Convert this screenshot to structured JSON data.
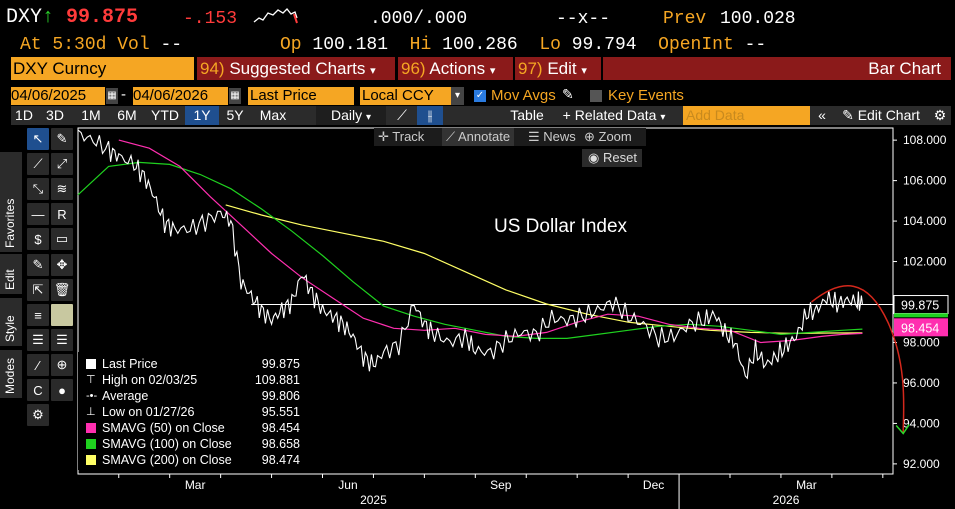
{
  "header": {
    "ticker": "DXY",
    "arrow": "↑",
    "last": "99.875",
    "change": "-.153",
    "bidask": ".000/.000",
    "size": "--x--",
    "prev_label": "Prev",
    "prev_value": "100.028",
    "at_label": "At",
    "time": "5:30d",
    "vol_label": "Vol",
    "vol_value": "--",
    "op_label": "Op",
    "op_value": "100.181",
    "hi_label": "Hi",
    "hi_value": "100.286",
    "lo_label": "Lo",
    "lo_value": "99.794",
    "openint_label": "OpenInt",
    "openint_value": "--"
  },
  "menu": {
    "security": "DXY Curncy",
    "suggested_num": "94)",
    "suggested": "Suggested Charts",
    "actions_num": "96)",
    "actions": "Actions",
    "edit_num": "97)",
    "edit": "Edit",
    "chart_type": "Bar Chart"
  },
  "controls": {
    "start_date": "04/06/2025",
    "end_date": "04/06/2026",
    "field": "Last Price",
    "currency": "Local CCY",
    "mov_avgs": "Mov Avgs",
    "key_events": "Key Events"
  },
  "periods": [
    "1D",
    "3D",
    "1M",
    "6M",
    "YTD",
    "1Y",
    "5Y",
    "Max"
  ],
  "selected_period": "1Y",
  "toolbar": {
    "frequency": "Daily",
    "table": "Table",
    "related_data": "+ Related Data",
    "add_data_placeholder": "Add Data",
    "edit_chart": "Edit Chart"
  },
  "chart_tools": {
    "track": "Track",
    "annotate": "Annotate",
    "news": "News",
    "zoom": "Zoom",
    "reset": "Reset"
  },
  "side_tabs": [
    "Favorites",
    "Edit",
    "Style",
    "Modes"
  ],
  "chart_data": {
    "type": "line",
    "title": "US Dollar Index",
    "x_ticks": [
      "Mar",
      "Jun",
      "Sep",
      "Dec",
      "Mar"
    ],
    "x_years": [
      "2025",
      "2026"
    ],
    "y_ticks": [
      "108.000",
      "106.000",
      "104.000",
      "102.000",
      "100.000",
      "98.000",
      "96.000",
      "94.000",
      "92.000"
    ],
    "ylim": [
      91.5,
      108.6
    ],
    "x_months": [
      {
        "label": "Mar",
        "m": 2
      },
      {
        "label": "Jun",
        "m": 5
      },
      {
        "label": "Sep",
        "m": 8
      },
      {
        "label": "Dec",
        "m": 11
      },
      {
        "label": "Mar",
        "m": 14
      }
    ],
    "xlim_months": [
      0.2,
      16.2
    ],
    "series": [
      {
        "name": "Last Price",
        "color": "#ffffff",
        "points": [
          [
            0.2,
            108.3
          ],
          [
            0.5,
            108.0
          ],
          [
            0.8,
            107.5
          ],
          [
            1.0,
            107.2
          ],
          [
            1.3,
            106.8
          ],
          [
            1.5,
            106.2
          ],
          [
            1.7,
            105.2
          ],
          [
            1.9,
            103.9
          ],
          [
            2.1,
            103.6
          ],
          [
            2.4,
            103.6
          ],
          [
            2.7,
            104.0
          ],
          [
            3.0,
            104.4
          ],
          [
            3.2,
            104.0
          ],
          [
            3.4,
            101.0
          ],
          [
            3.6,
            100.3
          ],
          [
            3.8,
            99.6
          ],
          [
            4.0,
            99.1
          ],
          [
            4.2,
            99.6
          ],
          [
            4.4,
            100.0
          ],
          [
            4.6,
            101.4
          ],
          [
            4.8,
            100.4
          ],
          [
            5.0,
            99.6
          ],
          [
            5.2,
            99.3
          ],
          [
            5.4,
            98.9
          ],
          [
            5.6,
            98.3
          ],
          [
            5.8,
            97.3
          ],
          [
            6.0,
            96.9
          ],
          [
            6.2,
            97.5
          ],
          [
            6.5,
            97.9
          ],
          [
            6.8,
            99.9
          ],
          [
            7.0,
            98.9
          ],
          [
            7.2,
            98.4
          ],
          [
            7.5,
            98.0
          ],
          [
            7.8,
            98.3
          ],
          [
            8.0,
            97.6
          ],
          [
            8.3,
            97.5
          ],
          [
            8.6,
            98.1
          ],
          [
            8.9,
            98.5
          ],
          [
            9.2,
            98.4
          ],
          [
            9.5,
            99.2
          ],
          [
            9.8,
            99.1
          ],
          [
            10.1,
            99.3
          ],
          [
            10.4,
            99.6
          ],
          [
            10.7,
            100.0
          ],
          [
            11.0,
            99.3
          ],
          [
            11.3,
            98.9
          ],
          [
            11.6,
            98.2
          ],
          [
            11.9,
            98.3
          ],
          [
            12.2,
            98.9
          ],
          [
            12.5,
            99.1
          ],
          [
            12.7,
            99.4
          ],
          [
            12.9,
            98.5
          ],
          [
            13.1,
            98.0
          ],
          [
            13.3,
            96.3
          ],
          [
            13.5,
            97.6
          ],
          [
            13.7,
            96.9
          ],
          [
            13.9,
            97.3
          ],
          [
            14.1,
            97.8
          ],
          [
            14.3,
            98.3
          ],
          [
            14.5,
            99.4
          ],
          [
            14.7,
            99.6
          ],
          [
            14.9,
            100.2
          ],
          [
            15.1,
            99.9
          ],
          [
            15.3,
            100.1
          ],
          [
            15.5,
            100.0
          ],
          [
            15.6,
            99.9
          ]
        ]
      },
      {
        "name": "SMAVG (50) on Close",
        "color": "#ff2fb0",
        "points": [
          [
            1.0,
            108.0
          ],
          [
            1.6,
            107.6
          ],
          [
            2.2,
            106.7
          ],
          [
            2.8,
            105.2
          ],
          [
            3.4,
            103.8
          ],
          [
            4.0,
            102.4
          ],
          [
            4.6,
            101.2
          ],
          [
            5.2,
            100.2
          ],
          [
            5.8,
            99.2
          ],
          [
            6.4,
            98.7
          ],
          [
            7.0,
            98.6
          ],
          [
            7.6,
            98.7
          ],
          [
            8.2,
            98.4
          ],
          [
            8.8,
            98.3
          ],
          [
            9.4,
            98.5
          ],
          [
            10.0,
            99.0
          ],
          [
            10.6,
            99.4
          ],
          [
            11.2,
            99.3
          ],
          [
            11.8,
            98.9
          ],
          [
            12.4,
            98.7
          ],
          [
            13.0,
            98.6
          ],
          [
            13.6,
            98.0
          ],
          [
            14.2,
            98.1
          ],
          [
            14.8,
            98.3
          ],
          [
            15.2,
            98.4
          ],
          [
            15.6,
            98.45
          ]
        ]
      },
      {
        "name": "SMAVG (100) on Close",
        "color": "#1fd11f",
        "points": [
          [
            0.2,
            105.3
          ],
          [
            0.8,
            106.7
          ],
          [
            1.4,
            106.9
          ],
          [
            2.0,
            106.8
          ],
          [
            2.6,
            106.3
          ],
          [
            3.2,
            105.6
          ],
          [
            3.8,
            104.6
          ],
          [
            4.4,
            103.5
          ],
          [
            5.0,
            102.3
          ],
          [
            5.6,
            101.0
          ],
          [
            6.2,
            99.8
          ],
          [
            6.8,
            99.3
          ],
          [
            7.4,
            98.9
          ],
          [
            8.0,
            98.6
          ],
          [
            8.6,
            98.3
          ],
          [
            9.2,
            98.2
          ],
          [
            9.8,
            98.2
          ],
          [
            10.4,
            98.4
          ],
          [
            11.0,
            98.6
          ],
          [
            11.6,
            98.8
          ],
          [
            12.2,
            98.9
          ],
          [
            12.8,
            98.8
          ],
          [
            13.4,
            98.6
          ],
          [
            14.0,
            98.4
          ],
          [
            14.6,
            98.5
          ],
          [
            15.2,
            98.6
          ],
          [
            15.6,
            98.66
          ]
        ]
      },
      {
        "name": "SMAVG (200) on Close",
        "color": "#ffff66",
        "points": [
          [
            3.1,
            104.8
          ],
          [
            3.8,
            104.3
          ],
          [
            4.6,
            103.8
          ],
          [
            5.4,
            103.4
          ],
          [
            6.2,
            103.0
          ],
          [
            7.0,
            102.4
          ],
          [
            7.8,
            101.5
          ],
          [
            8.6,
            100.6
          ],
          [
            9.4,
            99.9
          ],
          [
            10.2,
            99.4
          ],
          [
            11.0,
            99.0
          ],
          [
            11.8,
            98.8
          ],
          [
            12.6,
            98.6
          ],
          [
            13.4,
            98.5
          ],
          [
            14.2,
            98.45
          ],
          [
            15.0,
            98.47
          ],
          [
            15.6,
            98.474
          ]
        ]
      }
    ],
    "reference_line": 99.875,
    "last_price_tag": "99.875",
    "sma50_tag": "98.454",
    "annotation": {
      "type": "arrow-curve",
      "color": "#d4281c",
      "points": [
        [
          14.6,
          100.0
        ],
        [
          15.2,
          101.2
        ],
        [
          15.7,
          101.2
        ],
        [
          16.1,
          99.0
        ],
        [
          16.4,
          93.5
        ]
      ]
    }
  },
  "legend": [
    {
      "label": "Last Price",
      "value": "99.875",
      "color": "#ffffff",
      "marker": "box"
    },
    {
      "label": "High on 02/03/25",
      "value": "109.881",
      "color": "#ffffff",
      "marker": "up-tick"
    },
    {
      "label": "Average",
      "value": "99.806",
      "color": "#ffffff",
      "marker": "avg"
    },
    {
      "label": "Low on 01/27/26",
      "value": "95.551",
      "color": "#ffffff",
      "marker": "down-tick"
    },
    {
      "label": "SMAVG (50)  on Close",
      "value": "98.454",
      "color": "#ff2fb0",
      "marker": "box"
    },
    {
      "label": "SMAVG (100)  on Close",
      "value": "98.658",
      "color": "#1fd11f",
      "marker": "box"
    },
    {
      "label": "SMAVG (200)  on Close",
      "value": "98.474",
      "color": "#ffff66",
      "marker": "box"
    }
  ],
  "colors": {
    "amber": "#f5a623",
    "maroon": "#8b1a1a",
    "red": "#ff3b3b",
    "select_blue": "#1f4f8f",
    "magenta_tag": "#ff2fb0"
  }
}
